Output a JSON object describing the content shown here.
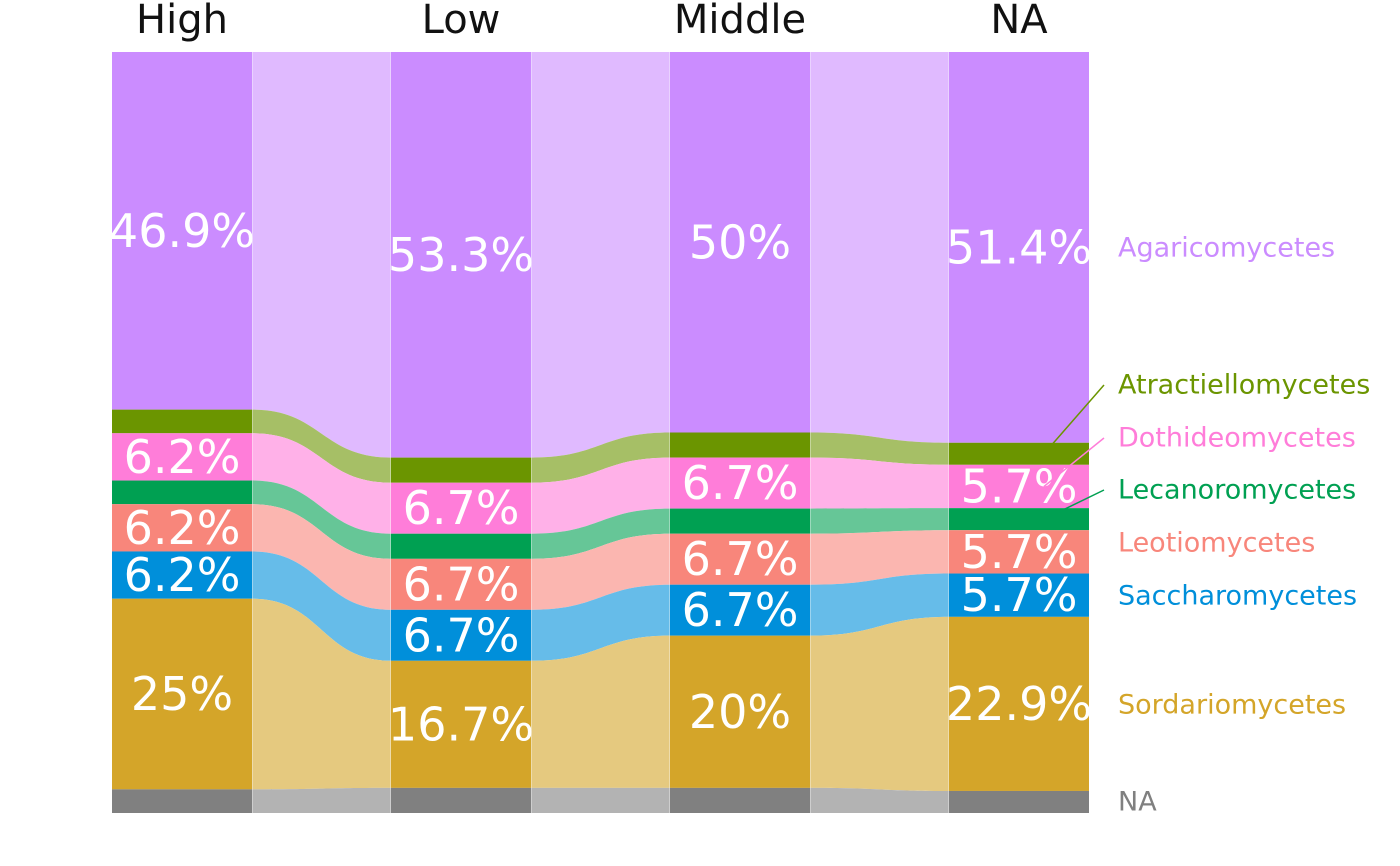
{
  "chart_data": {
    "type": "alluvial",
    "title": "",
    "categories": [
      "High",
      "Low",
      "Middle",
      "NA"
    ],
    "series": [
      {
        "name": "Agaricomycetes",
        "color": "#CB8CFF",
        "values": [
          46.9,
          53.3,
          50,
          51.4
        ],
        "labels": [
          "46.9%",
          "53.3%",
          "50%",
          "51.4%"
        ]
      },
      {
        "name": "Atractiellomycetes",
        "color": "#6B9500",
        "values": [
          3.1,
          3.3,
          3.3,
          2.9
        ],
        "labels": [
          "",
          "",
          "",
          ""
        ]
      },
      {
        "name": "Dothideomycetes",
        "color": "#FF7DD9",
        "values": [
          6.2,
          6.7,
          6.7,
          5.7
        ],
        "labels": [
          "6.2%",
          "6.7%",
          "6.7%",
          "5.7%"
        ]
      },
      {
        "name": "Lecanoromycetes",
        "color": "#00A052",
        "values": [
          3.1,
          3.3,
          3.3,
          2.9
        ],
        "labels": [
          "",
          "",
          "",
          ""
        ]
      },
      {
        "name": "Leotiomycetes",
        "color": "#F8867B",
        "values": [
          6.2,
          6.7,
          6.7,
          5.7
        ],
        "labels": [
          "6.2%",
          "6.7%",
          "6.7%",
          "5.7%"
        ]
      },
      {
        "name": "Saccharomycetes",
        "color": "#008FDA",
        "values": [
          6.2,
          6.7,
          6.7,
          5.7
        ],
        "labels": [
          "6.2%",
          "6.7%",
          "6.7%",
          "5.7%"
        ]
      },
      {
        "name": "Sordariomycetes",
        "color": "#D4A529",
        "values": [
          25,
          16.7,
          20,
          22.9
        ],
        "labels": [
          "25%",
          "16.7%",
          "20%",
          "22.9%"
        ]
      },
      {
        "name": "NA",
        "color": "#808080",
        "values": [
          3.1,
          3.3,
          3.3,
          2.9
        ],
        "labels": [
          "",
          "",
          "",
          ""
        ]
      }
    ],
    "ylim": [
      0,
      100
    ],
    "legend": "right",
    "grid": false,
    "xlabel": "",
    "ylabel": ""
  }
}
